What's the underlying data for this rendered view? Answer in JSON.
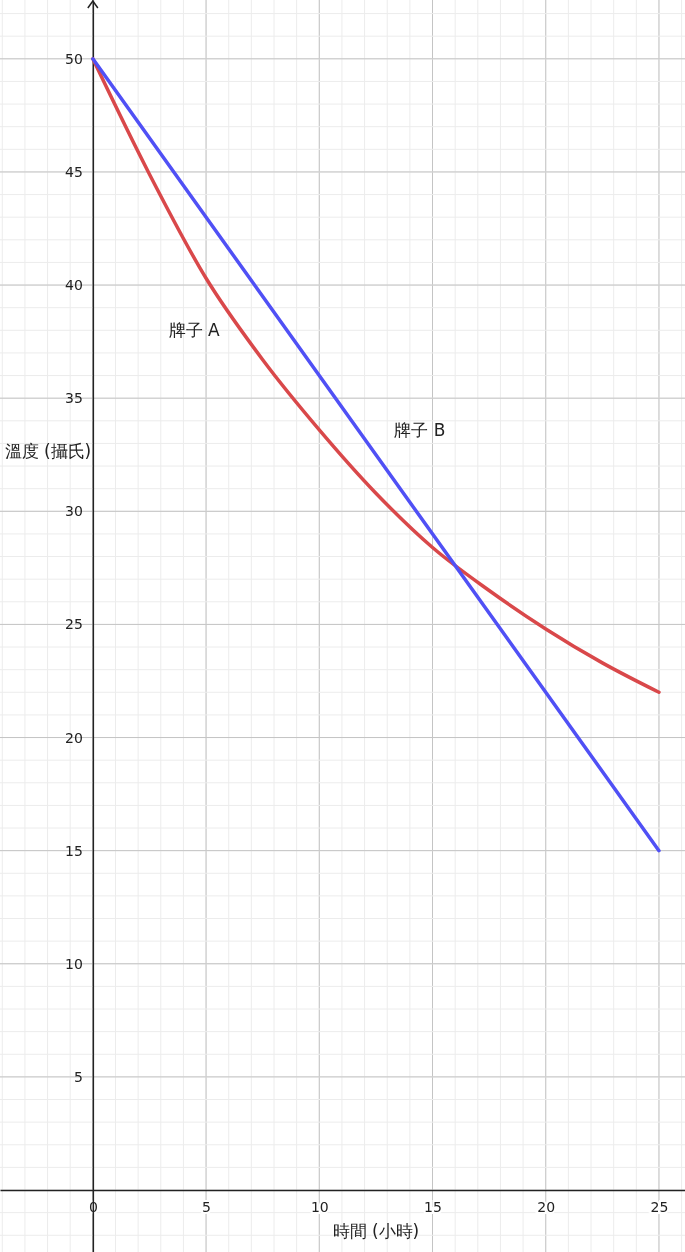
{
  "chart_data": {
    "type": "line",
    "xlabel": "時間 (小時)",
    "ylabel": "溫度 (攝氏)",
    "xlim": [
      -4.1,
      26.15
    ],
    "ylim": [
      -2.74,
      52.6
    ],
    "xticks": [
      0,
      5,
      10,
      15,
      20,
      25
    ],
    "yticks": [
      5,
      10,
      15,
      20,
      25,
      30,
      35,
      40,
      45,
      50
    ],
    "grid": true,
    "marker": "none",
    "line_style": "solid",
    "series": [
      {
        "name": "牌子 A",
        "color": "#d9484a",
        "x": [
          0,
          2.5,
          5,
          7.5,
          10,
          12.5,
          15,
          17.5,
          20,
          22.5,
          25
        ],
        "values": [
          50,
          44.9,
          40.3,
          36.7,
          33.6,
          30.8,
          28.4,
          26.5,
          24.8,
          23.3,
          22.0
        ]
      },
      {
        "name": "牌子 B",
        "color": "#5050f5",
        "x": [
          0,
          25
        ],
        "values": [
          50,
          15
        ]
      }
    ]
  }
}
